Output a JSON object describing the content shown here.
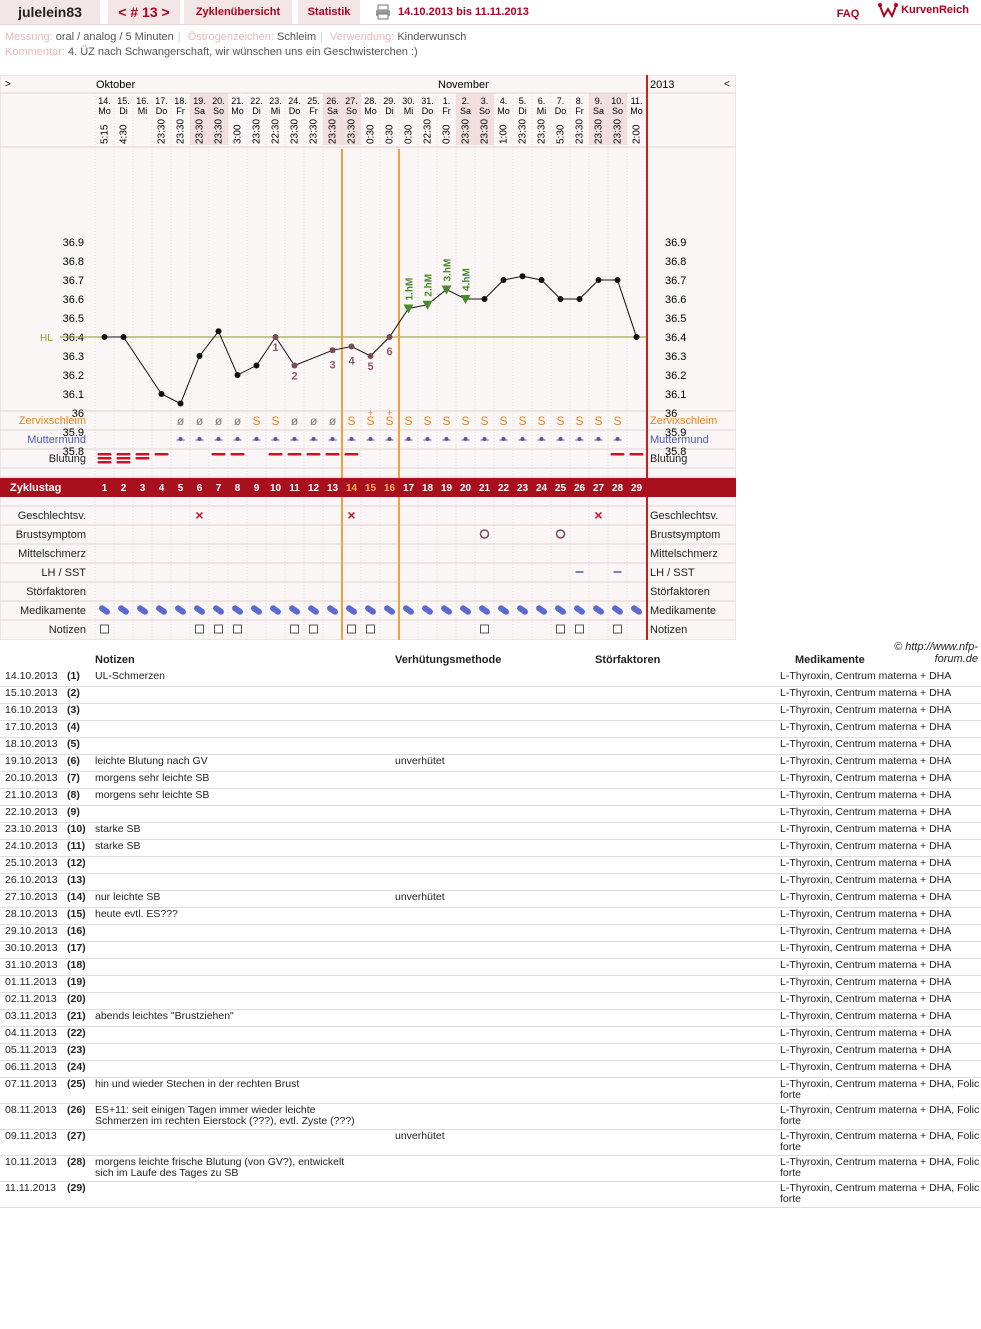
{
  "topbar": {
    "user": "julelein83",
    "cycle": "< # 13 >",
    "overview": "Zyklenübersicht",
    "stats": "Statistik",
    "range": "14.10.2013 bis 11.11.2013",
    "faq": "FAQ",
    "logo": "KurvenReich"
  },
  "meta": {
    "messung_label": "Messung:",
    "messung": "oral / analog / 5 Minuten",
    "oestrogen_label": "Östrogenzeichen:",
    "oestrogen": "Schleim",
    "verwendung_label": "Verwendung:",
    "verwendung": "Kinderwunsch",
    "kommentar_label": "Kommentar:",
    "kommentar": "4. ÜZ nach Schwangerschaft, wir wünschen uns ein Geschwisterchen :)"
  },
  "chart_data": {
    "type": "line",
    "month_left": "Oktober",
    "month_right": "November",
    "year": "2013",
    "nav_left": ">",
    "nav_right": "<",
    "hl_label": "HL",
    "hl_value": 36.4,
    "y_ticks": [
      "36.9",
      "36.8",
      "36.7",
      "36.6",
      "36.5",
      "36.4",
      "36.3",
      "36.2",
      "36.1",
      "36",
      "35.9",
      "35.8"
    ],
    "ylim": [
      35.75,
      36.95
    ],
    "dates": [
      "14.",
      "15.",
      "16.",
      "17.",
      "18.",
      "19.",
      "20.",
      "21.",
      "22.",
      "23.",
      "24.",
      "25.",
      "26.",
      "27.",
      "28.",
      "29.",
      "30.",
      "31.",
      "1.",
      "2.",
      "3.",
      "4.",
      "5.",
      "6.",
      "7.",
      "8.",
      "9.",
      "10.",
      "11."
    ],
    "weekdays": [
      "Mo",
      "Di",
      "Mi",
      "Do",
      "Fr",
      "Sa",
      "So",
      "Mo",
      "Di",
      "Mi",
      "Do",
      "Fr",
      "Sa",
      "So",
      "Mo",
      "Di",
      "Mi",
      "Do",
      "Fr",
      "Sa",
      "So",
      "Mo",
      "Di",
      "Mi",
      "Do",
      "Fr",
      "Sa",
      "So",
      "Mo"
    ],
    "times": [
      "5:15",
      "4:30",
      "",
      "23:30",
      "23:30",
      "23:30",
      "23:30",
      "3:00",
      "23:30",
      "22:30",
      "23:30",
      "23:30",
      "23:30",
      "23:30",
      "0:30",
      "0:30",
      "0:30",
      "22:30",
      "0:30",
      "23:30",
      "23:30",
      "1:00",
      "23:30",
      "23:30",
      "5:30",
      "23:30",
      "23:30",
      "23:30",
      "2:00"
    ],
    "temps": [
      36.4,
      36.4,
      null,
      36.1,
      36.05,
      36.3,
      36.43,
      36.2,
      36.25,
      36.4,
      36.25,
      null,
      36.33,
      36.35,
      36.3,
      36.4,
      36.55,
      36.57,
      36.65,
      36.6,
      36.6,
      36.7,
      36.72,
      36.7,
      36.6,
      36.6,
      36.7,
      36.7,
      36.4
    ],
    "low_labels": [
      {
        "day": 10,
        "text": "1"
      },
      {
        "day": 11,
        "text": "2"
      },
      {
        "day": 13,
        "text": "3"
      },
      {
        "day": 14,
        "text": "4"
      },
      {
        "day": 15,
        "text": "5"
      },
      {
        "day": 16,
        "text": "6"
      }
    ],
    "high_labels": [
      {
        "day": 17,
        "text": "1.hM"
      },
      {
        "day": 18,
        "text": "2.hM"
      },
      {
        "day": 19,
        "text": "3.hM"
      },
      {
        "day": 20,
        "text": "4.hM"
      }
    ],
    "coverline_days": [
      14,
      16
    ],
    "row_labels": {
      "zervix": "Zervixschleim",
      "muttermund": "Muttermund",
      "blutung": "Blutung",
      "zyklustag": "Zyklustag",
      "gv": "Geschlechtsv.",
      "brust": "Brustsymptom",
      "mittel": "Mittelschmerz",
      "lh": "LH / SST",
      "stoer": "Störfaktoren",
      "med": "Medikamente",
      "notizen": "Notizen"
    },
    "zervix": [
      "",
      "",
      "",
      "",
      "ø",
      "ø",
      "ø",
      "ø",
      "S",
      "S",
      "ø",
      "ø",
      "ø",
      "S",
      "S+",
      "S+",
      "S",
      "S",
      "S",
      "S",
      "S",
      "S",
      "S",
      "S",
      "S",
      "S",
      "S",
      "S",
      ""
    ],
    "blutung": [
      3,
      3,
      2,
      1,
      0,
      0,
      1,
      1,
      0,
      1,
      1,
      1,
      1,
      1,
      0,
      0,
      0,
      0,
      0,
      0,
      0,
      0,
      0,
      0,
      0,
      0,
      0,
      1,
      1
    ],
    "gv_days": [
      6,
      14,
      27
    ],
    "brust_days": [
      21,
      25
    ],
    "lh_days": [
      26,
      28
    ],
    "notes_days": [
      1,
      6,
      7,
      8,
      11,
      12,
      14,
      15,
      21,
      25,
      26,
      28
    ]
  },
  "table": {
    "headers": {
      "notizen": "Notizen",
      "methode": "Verhütungsmethode",
      "stoer": "Störfaktoren",
      "med": "Medikamente"
    },
    "copyright": "© http://www.nfp-forum.de",
    "rows": [
      {
        "date": "14.10.2013",
        "day": "(1)",
        "note": "UL-Schmerzen",
        "method": "",
        "med": "L-Thyroxin, Centrum materna + DHA"
      },
      {
        "date": "15.10.2013",
        "day": "(2)",
        "note": "",
        "method": "",
        "med": "L-Thyroxin, Centrum materna + DHA"
      },
      {
        "date": "16.10.2013",
        "day": "(3)",
        "note": "",
        "method": "",
        "med": "L-Thyroxin, Centrum materna + DHA"
      },
      {
        "date": "17.10.2013",
        "day": "(4)",
        "note": "",
        "method": "",
        "med": "L-Thyroxin, Centrum materna + DHA"
      },
      {
        "date": "18.10.2013",
        "day": "(5)",
        "note": "",
        "method": "",
        "med": "L-Thyroxin, Centrum materna + DHA"
      },
      {
        "date": "19.10.2013",
        "day": "(6)",
        "note": "leichte Blutung nach GV",
        "method": "unverhütet",
        "med": "L-Thyroxin, Centrum materna + DHA"
      },
      {
        "date": "20.10.2013",
        "day": "(7)",
        "note": "morgens sehr leichte SB",
        "method": "",
        "med": "L-Thyroxin, Centrum materna + DHA"
      },
      {
        "date": "21.10.2013",
        "day": "(8)",
        "note": "morgens sehr leichte SB",
        "method": "",
        "med": "L-Thyroxin, Centrum materna + DHA"
      },
      {
        "date": "22.10.2013",
        "day": "(9)",
        "note": "",
        "method": "",
        "med": "L-Thyroxin, Centrum materna + DHA"
      },
      {
        "date": "23.10.2013",
        "day": "(10)",
        "note": "starke SB",
        "method": "",
        "med": "L-Thyroxin, Centrum materna + DHA"
      },
      {
        "date": "24.10.2013",
        "day": "(11)",
        "note": "starke SB",
        "method": "",
        "med": "L-Thyroxin, Centrum materna + DHA"
      },
      {
        "date": "25.10.2013",
        "day": "(12)",
        "note": "",
        "method": "",
        "med": "L-Thyroxin, Centrum materna + DHA"
      },
      {
        "date": "26.10.2013",
        "day": "(13)",
        "note": "",
        "method": "",
        "med": "L-Thyroxin, Centrum materna + DHA"
      },
      {
        "date": "27.10.2013",
        "day": "(14)",
        "note": "nur leichte SB",
        "method": "unverhütet",
        "med": "L-Thyroxin, Centrum materna + DHA"
      },
      {
        "date": "28.10.2013",
        "day": "(15)",
        "note": "heute evtl. ES???",
        "method": "",
        "med": "L-Thyroxin, Centrum materna + DHA"
      },
      {
        "date": "29.10.2013",
        "day": "(16)",
        "note": "",
        "method": "",
        "med": "L-Thyroxin, Centrum materna + DHA"
      },
      {
        "date": "30.10.2013",
        "day": "(17)",
        "note": "",
        "method": "",
        "med": "L-Thyroxin, Centrum materna + DHA"
      },
      {
        "date": "31.10.2013",
        "day": "(18)",
        "note": "",
        "method": "",
        "med": "L-Thyroxin, Centrum materna + DHA"
      },
      {
        "date": "01.11.2013",
        "day": "(19)",
        "note": "",
        "method": "",
        "med": "L-Thyroxin, Centrum materna + DHA"
      },
      {
        "date": "02.11.2013",
        "day": "(20)",
        "note": "",
        "method": "",
        "med": "L-Thyroxin, Centrum materna + DHA"
      },
      {
        "date": "03.11.2013",
        "day": "(21)",
        "note": "abends leichtes \"Brustziehen\"",
        "method": "",
        "med": "L-Thyroxin, Centrum materna + DHA"
      },
      {
        "date": "04.11.2013",
        "day": "(22)",
        "note": "",
        "method": "",
        "med": "L-Thyroxin, Centrum materna + DHA"
      },
      {
        "date": "05.11.2013",
        "day": "(23)",
        "note": "",
        "method": "",
        "med": "L-Thyroxin, Centrum materna + DHA"
      },
      {
        "date": "06.11.2013",
        "day": "(24)",
        "note": "",
        "method": "",
        "med": "L-Thyroxin, Centrum materna + DHA"
      },
      {
        "date": "07.11.2013",
        "day": "(25)",
        "note": "hin und wieder Stechen in der rechten Brust",
        "method": "",
        "med": "L-Thyroxin, Centrum materna + DHA, Folic forte"
      },
      {
        "date": "08.11.2013",
        "day": "(26)",
        "note": "ES+11: seit einigen Tagen immer wieder leichte\nSchmerzen im rechten Eierstock (???), evtl. Zyste (???)",
        "method": "",
        "med": "L-Thyroxin, Centrum materna + DHA, Folic forte"
      },
      {
        "date": "09.11.2013",
        "day": "(27)",
        "note": "",
        "method": "unverhütet",
        "med": "L-Thyroxin, Centrum materna + DHA, Folic forte"
      },
      {
        "date": "10.11.2013",
        "day": "(28)",
        "note": "morgens leichte frische Blutung (von GV?), entwickelt\nsich im Laufe des Tages zu SB",
        "method": "",
        "med": "L-Thyroxin, Centrum materna + DHA, Folic forte"
      },
      {
        "date": "11.11.2013",
        "day": "(29)",
        "note": "",
        "method": "",
        "med": "L-Thyroxin, Centrum materna + DHA, Folic forte"
      }
    ]
  }
}
